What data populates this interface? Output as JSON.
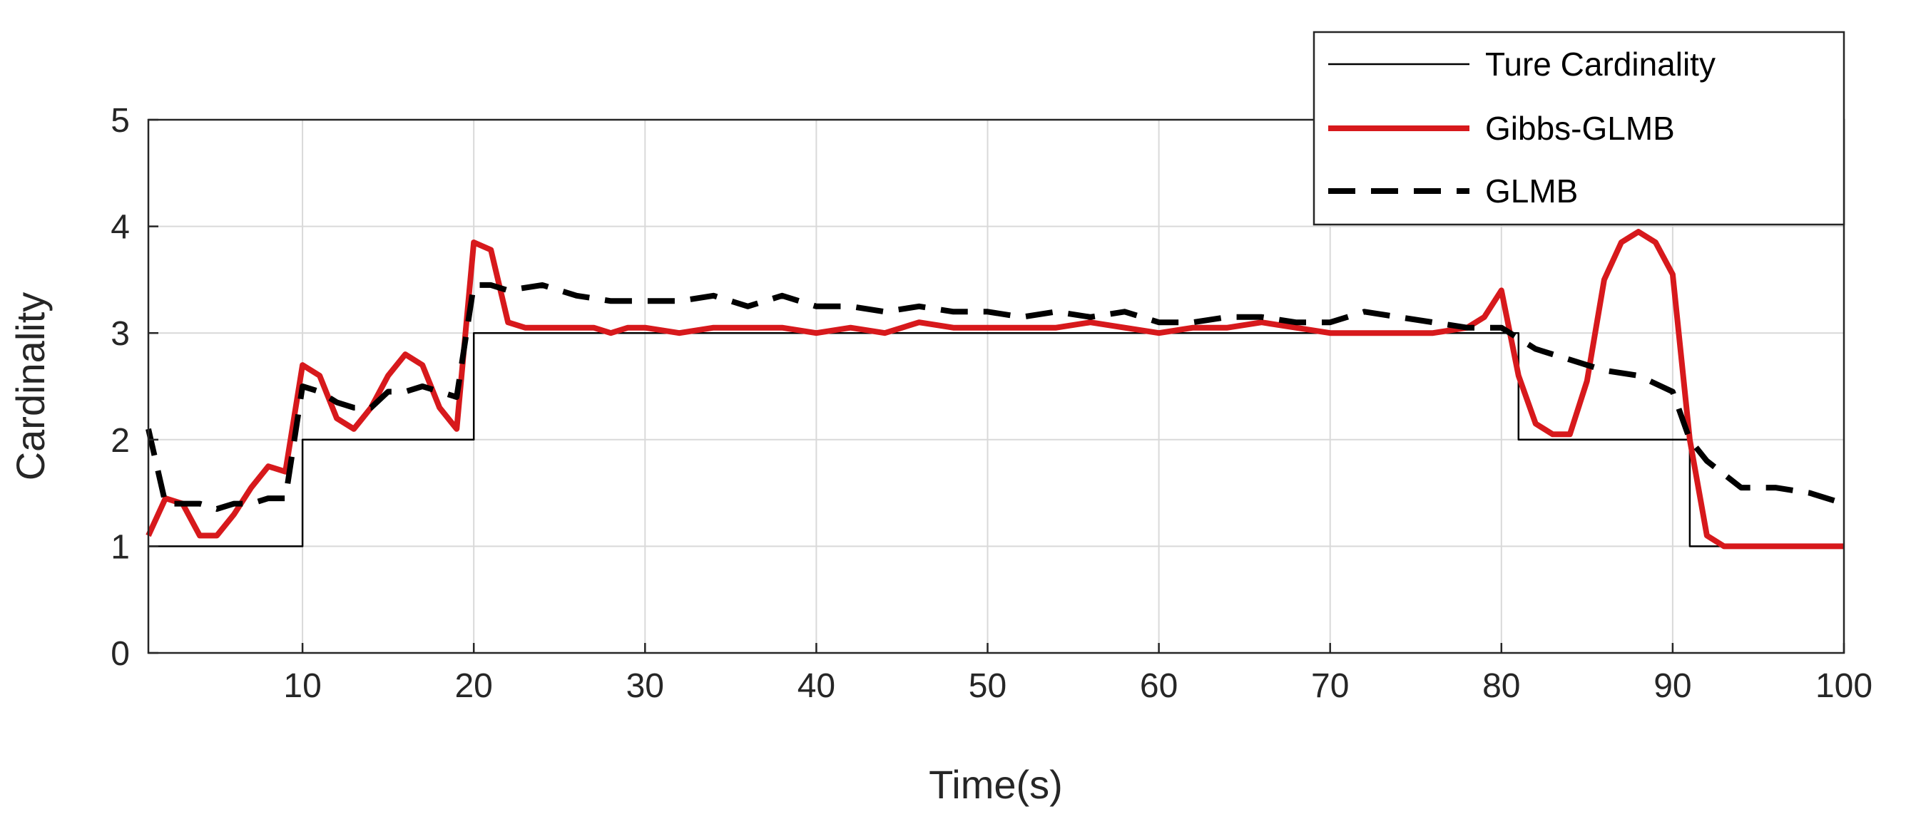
{
  "chart_data": {
    "type": "line",
    "title": "",
    "xlabel": "Time(s)",
    "ylabel": "Cardinality",
    "xlim": [
      1,
      100
    ],
    "ylim": [
      0,
      5
    ],
    "xticks": [
      10,
      20,
      30,
      40,
      50,
      60,
      70,
      80,
      90,
      100
    ],
    "yticks": [
      0,
      1,
      2,
      3,
      4,
      5
    ],
    "grid": true,
    "legend_position": "top-right",
    "series": [
      {
        "name": "Ture Cardinality",
        "style": "solid-thin",
        "color": "#000000",
        "x": [
          1,
          10,
          10,
          20,
          20,
          81,
          81,
          91,
          91,
          100
        ],
        "y": [
          1,
          1,
          2,
          2,
          3,
          3,
          2,
          2,
          1,
          1
        ]
      },
      {
        "name": "Gibbs-GLMB",
        "style": "solid-thick",
        "color": "#d7191c",
        "x": [
          1,
          2,
          3,
          4,
          5,
          6,
          7,
          8,
          9,
          10,
          11,
          12,
          13,
          14,
          15,
          16,
          17,
          18,
          19,
          20,
          21,
          22,
          23,
          24,
          25,
          26,
          27,
          28,
          29,
          30,
          32,
          34,
          36,
          38,
          40,
          42,
          44,
          46,
          48,
          50,
          52,
          54,
          56,
          58,
          60,
          62,
          64,
          66,
          68,
          70,
          72,
          74,
          76,
          78,
          79,
          80,
          81,
          82,
          83,
          84,
          85,
          86,
          87,
          88,
          89,
          90,
          91,
          92,
          93,
          94,
          95,
          96,
          97,
          98,
          99,
          100
        ],
        "y": [
          1.1,
          1.45,
          1.4,
          1.1,
          1.1,
          1.3,
          1.55,
          1.75,
          1.7,
          2.7,
          2.6,
          2.2,
          2.1,
          2.3,
          2.6,
          2.8,
          2.7,
          2.3,
          2.1,
          3.85,
          3.78,
          3.1,
          3.05,
          3.05,
          3.05,
          3.05,
          3.05,
          3.0,
          3.05,
          3.05,
          3.0,
          3.05,
          3.05,
          3.05,
          3.0,
          3.05,
          3.0,
          3.1,
          3.05,
          3.05,
          3.05,
          3.05,
          3.1,
          3.05,
          3.0,
          3.05,
          3.05,
          3.1,
          3.05,
          3.0,
          3.0,
          3.0,
          3.0,
          3.05,
          3.15,
          3.4,
          2.6,
          2.15,
          2.05,
          2.05,
          2.55,
          3.5,
          3.85,
          3.95,
          3.85,
          3.55,
          2.0,
          1.1,
          1.0,
          1.0,
          1.0,
          1.0,
          1.0,
          1.0,
          1.0,
          1.0
        ]
      },
      {
        "name": "GLMB",
        "style": "dashed",
        "color": "#000000",
        "x": [
          1,
          2,
          3,
          4,
          5,
          6,
          7,
          8,
          9,
          10,
          11,
          12,
          13,
          14,
          15,
          16,
          17,
          18,
          19,
          20,
          21,
          22,
          24,
          26,
          28,
          30,
          32,
          34,
          36,
          38,
          40,
          42,
          44,
          46,
          48,
          50,
          52,
          54,
          56,
          58,
          60,
          62,
          64,
          66,
          68,
          70,
          72,
          74,
          76,
          78,
          80,
          82,
          84,
          86,
          88,
          90,
          91,
          92,
          94,
          96,
          98,
          100
        ],
        "y": [
          2.1,
          1.4,
          1.4,
          1.4,
          1.35,
          1.4,
          1.4,
          1.45,
          1.45,
          2.5,
          2.45,
          2.35,
          2.3,
          2.3,
          2.45,
          2.45,
          2.5,
          2.45,
          2.4,
          3.45,
          3.45,
          3.4,
          3.45,
          3.35,
          3.3,
          3.3,
          3.3,
          3.35,
          3.25,
          3.35,
          3.25,
          3.25,
          3.2,
          3.25,
          3.2,
          3.2,
          3.15,
          3.2,
          3.15,
          3.2,
          3.1,
          3.1,
          3.15,
          3.15,
          3.1,
          3.1,
          3.2,
          3.15,
          3.1,
          3.05,
          3.05,
          2.85,
          2.75,
          2.65,
          2.6,
          2.45,
          2.0,
          1.8,
          1.55,
          1.55,
          1.5,
          1.4
        ]
      }
    ]
  }
}
